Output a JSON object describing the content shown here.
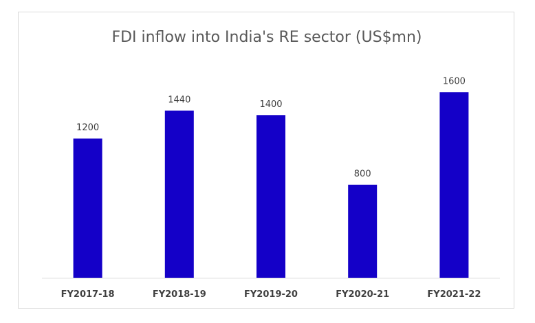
{
  "chart_data": {
    "type": "bar",
    "title": "FDI inflow into India's  RE sector (US$mn)",
    "categories": [
      "FY2017-18",
      "FY2018-19",
      "FY2019-20",
      "FY2020-21",
      "FY2021-22"
    ],
    "values": [
      1200,
      1440,
      1400,
      800,
      1600
    ],
    "xlabel": "",
    "ylabel": "",
    "ylim": [
      0,
      1800
    ],
    "grid": false,
    "legend": "none",
    "bar_color": "#1400C8",
    "axis_color": "#d9d9d9",
    "data_labels": true
  }
}
